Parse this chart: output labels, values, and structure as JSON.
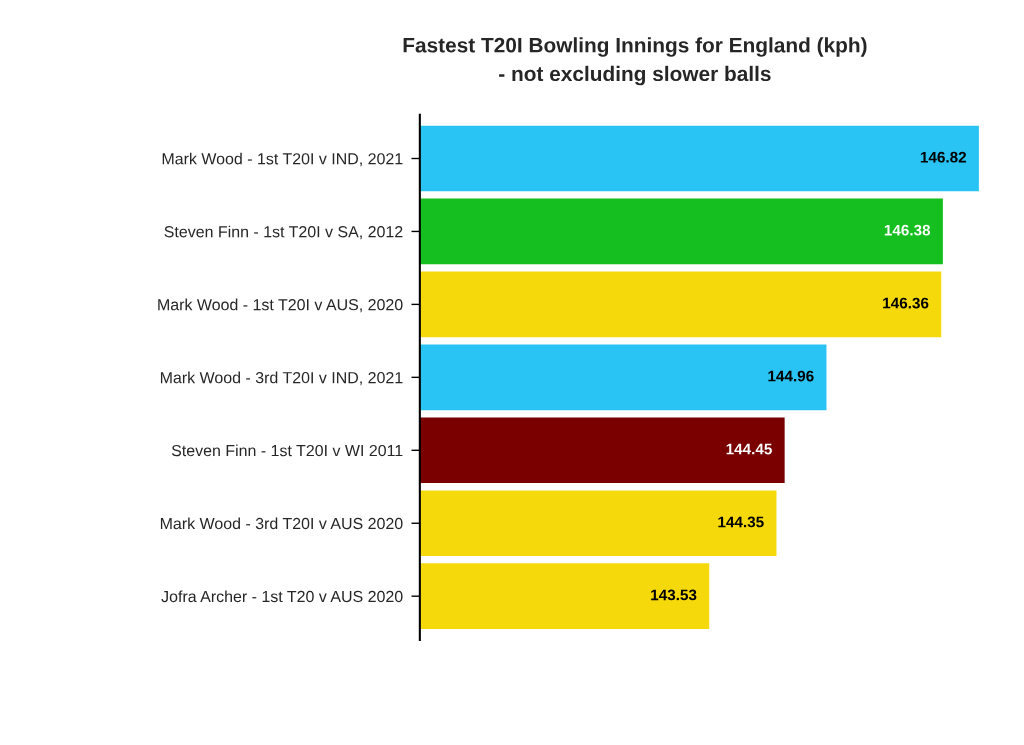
{
  "chart_data": {
    "type": "bar",
    "orientation": "horizontal",
    "title": "Fastest T20I Bowling Innings for England (kph)\n- not excluding slower balls",
    "categories": [
      "Mark Wood - 1st T20I v IND, 2021",
      "Steven Finn - 1st T20I v SA, 2012",
      "Mark Wood - 1st T20I v AUS, 2020",
      "Mark Wood - 3rd T20I v IND, 2021",
      "Steven Finn - 1st T20I v WI 2011",
      "Mark Wood - 3rd T20I v AUS 2020",
      "Jofra Archer - 1st T20 v AUS 2020"
    ],
    "values": [
      146.82,
      146.38,
      146.36,
      144.96,
      144.45,
      144.35,
      143.53
    ],
    "colors": [
      "#29c3f4",
      "#15bf1f",
      "#f5d90a",
      "#29c3f4",
      "#7a0000",
      "#f5d90a",
      "#f5d90a"
    ],
    "xlim": [
      140,
      146.82
    ],
    "tick_labels": "y",
    "data_labels": true,
    "grid": false
  }
}
